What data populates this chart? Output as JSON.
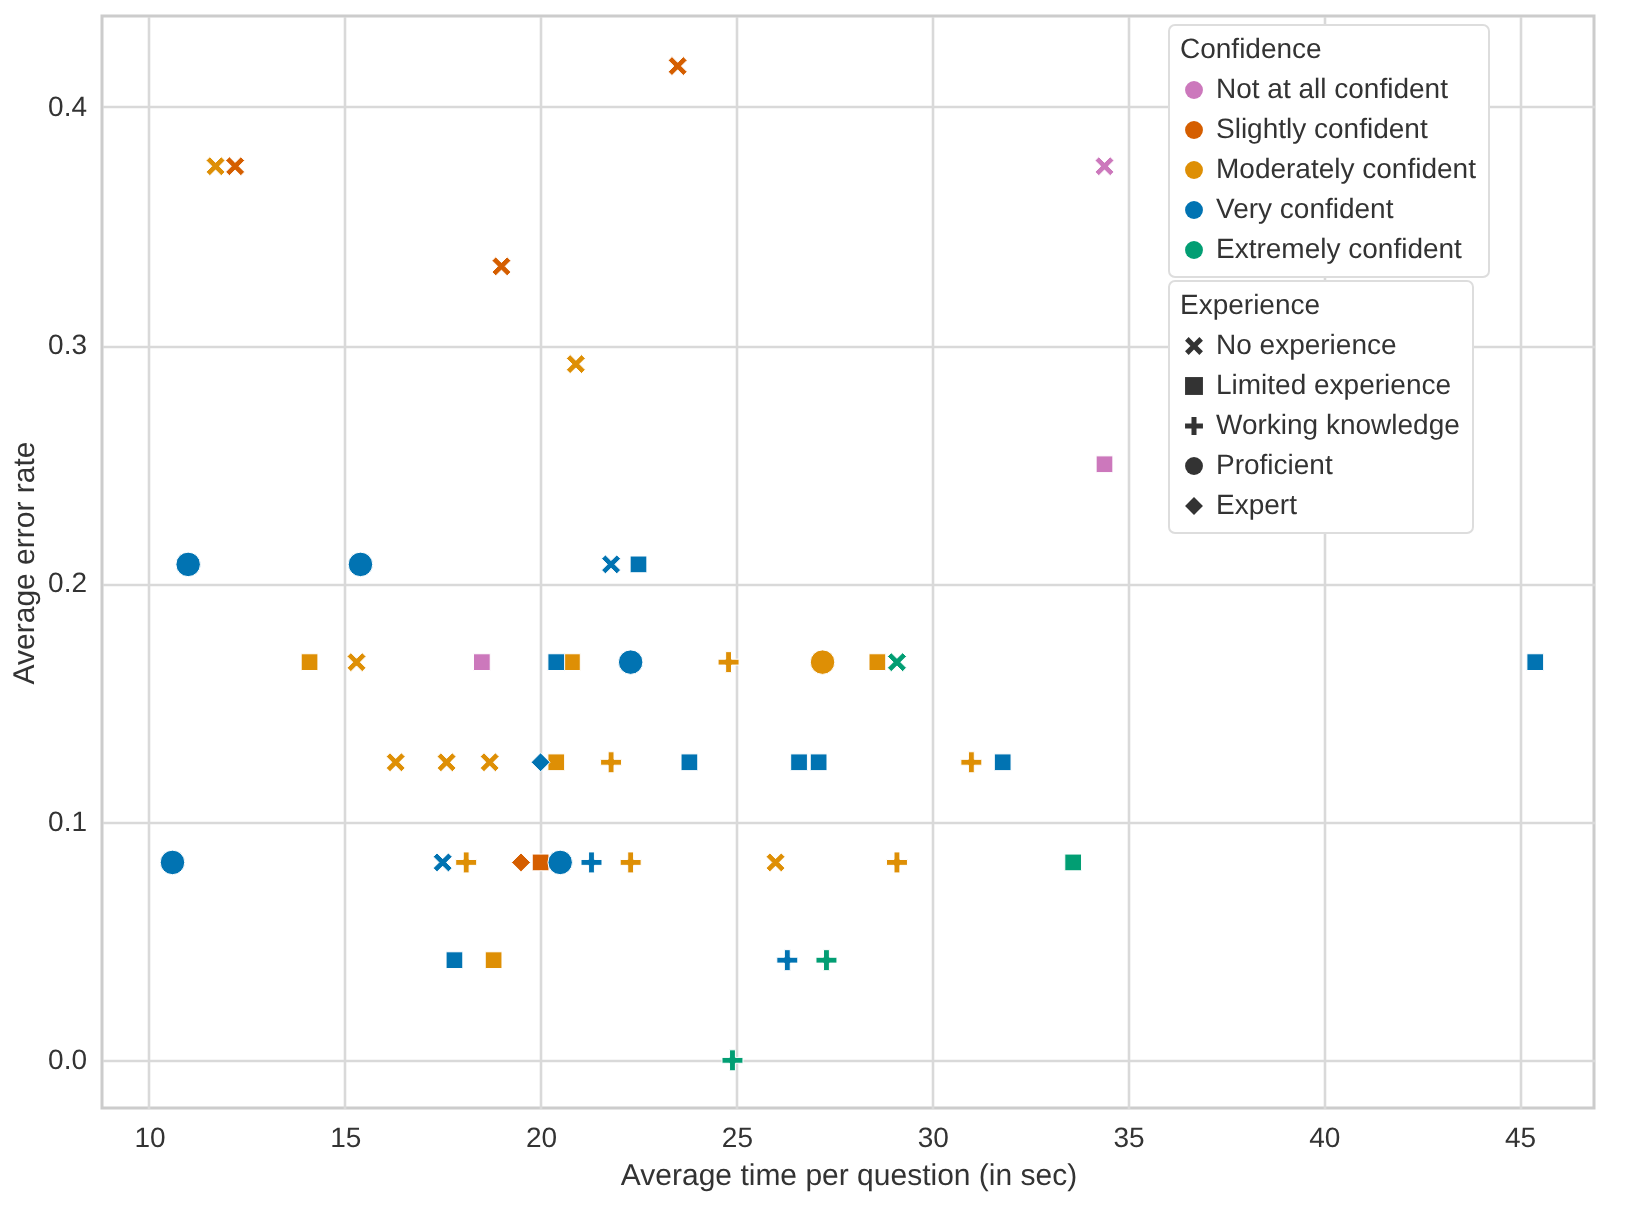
{
  "chart_data": {
    "type": "scatter",
    "xlabel": "Average time per question (in sec)",
    "ylabel": "Average error rate",
    "legend_title": [
      "Confidence",
      "Experience"
    ],
    "xlim": [
      8.8,
      46.9
    ],
    "xticks": [
      10,
      15,
      20,
      25,
      30,
      35,
      40,
      45
    ],
    "ylim": [
      -0.02,
      0.438
    ],
    "yticks": [
      {
        "value": 0,
        "label": "0.0"
      },
      0.1,
      0.2,
      0.3,
      0.4
    ],
    "grid": true,
    "legend": "top right",
    "series": [
      {
        "name": "Not at all confident",
        "color": "#cc78bc",
        "marker": "x",
        "x": [
          34.4
        ],
        "values": [
          0.375
        ]
      },
      {
        "color": "#cc78bc",
        "marker": "square",
        "x": [
          34.4,
          18.5
        ],
        "values": [
          0.25,
          0.167
        ]
      },
      {
        "name": "Slightly confident",
        "color": "#d55e00",
        "marker": "x",
        "x": [
          12.2,
          19.0,
          23.5
        ],
        "values": [
          0.375,
          0.333,
          0.417
        ]
      },
      {
        "color": "#d55e00",
        "marker": "diamond",
        "x": [
          19.5
        ],
        "values": [
          0.083
        ]
      },
      {
        "color": "#d55e00",
        "marker": "square",
        "x": [
          20.0
        ],
        "values": [
          0.083
        ]
      },
      {
        "name": "Moderately confident",
        "color": "#de8f05",
        "marker": "x",
        "x": [
          11.7,
          20.9,
          15.3,
          16.3,
          17.6,
          18.7,
          26.0
        ],
        "values": [
          0.375,
          0.292,
          0.167,
          0.125,
          0.125,
          0.125,
          0.083
        ]
      },
      {
        "color": "#de8f05",
        "marker": "square",
        "x": [
          14.1,
          20.8,
          28.6,
          20.4,
          18.8
        ],
        "values": [
          0.167,
          0.167,
          0.167,
          0.125,
          0.042
        ]
      },
      {
        "color": "#de8f05",
        "marker": "plus",
        "x": [
          24.8,
          21.8,
          31.0,
          18.1,
          22.3,
          29.1
        ],
        "values": [
          0.167,
          0.125,
          0.125,
          0.083,
          0.083,
          0.083
        ]
      },
      {
        "color": "#de8f05",
        "marker": "circle",
        "x": [
          27.2
        ],
        "values": [
          0.167
        ]
      },
      {
        "name": "Very confident",
        "color": "#0173b2",
        "marker": "circle",
        "x": [
          11.0,
          15.4,
          22.3,
          10.6,
          20.5
        ],
        "values": [
          0.208,
          0.208,
          0.167,
          0.083,
          0.083
        ]
      },
      {
        "color": "#0173b2",
        "marker": "x",
        "x": [
          21.8,
          17.5
        ],
        "values": [
          0.208,
          0.083
        ]
      },
      {
        "color": "#0173b2",
        "marker": "square",
        "x": [
          22.5,
          20.4,
          45.4,
          23.8,
          26.6,
          27.1,
          31.8,
          17.8
        ],
        "values": [
          0.208,
          0.167,
          0.167,
          0.125,
          0.125,
          0.125,
          0.125,
          0.042
        ]
      },
      {
        "color": "#0173b2",
        "marker": "diamond",
        "x": [
          20.0
        ],
        "values": [
          0.125
        ]
      },
      {
        "color": "#0173b2",
        "marker": "plus",
        "x": [
          21.3,
          26.3
        ],
        "values": [
          0.083,
          0.042
        ]
      },
      {
        "name": "Extremely confident",
        "color": "#029e73",
        "marker": "x",
        "x": [
          29.1
        ],
        "values": [
          0.167
        ]
      },
      {
        "color": "#029e73",
        "marker": "square",
        "x": [
          33.6
        ],
        "values": [
          0.083
        ]
      },
      {
        "color": "#029e73",
        "marker": "plus",
        "x": [
          27.3,
          24.9
        ],
        "values": [
          0.042,
          0.0
        ]
      },
      {
        "name": "No experience",
        "color": "#333333",
        "marker": "x"
      },
      {
        "name": "Limited experience",
        "color": "#333333",
        "marker": "square"
      },
      {
        "name": "Working knowledge",
        "color": "#333333",
        "marker": "plus"
      },
      {
        "name": "Proficient",
        "color": "#333333",
        "marker": "circle"
      },
      {
        "name": "Expert",
        "color": "#333333",
        "marker": "diamond"
      }
    ]
  }
}
